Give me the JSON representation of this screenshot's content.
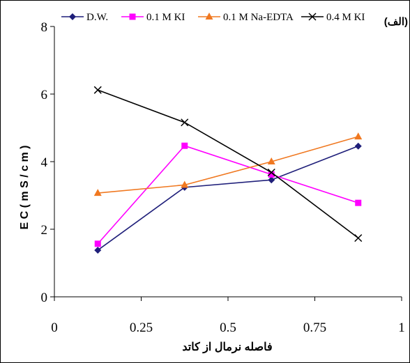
{
  "chart_data": {
    "type": "line",
    "panel_label": "(الف)",
    "xlabel": "فاصله نرمال از کاتد",
    "ylabel": "E C  ( m S / c m )",
    "xlim": [
      0,
      1
    ],
    "ylim": [
      0,
      8
    ],
    "x_ticks": [
      "0",
      "0.25",
      "0.5",
      "0.75",
      "1"
    ],
    "y_ticks": [
      "0",
      "2",
      "4",
      "6",
      "8"
    ],
    "x": [
      0.125,
      0.375,
      0.625,
      0.875
    ],
    "grid": false,
    "legend_position": "top",
    "series": [
      {
        "name": "D.W.",
        "color": "#1f1f7a",
        "marker": "diamond",
        "values": [
          1.38,
          3.24,
          3.46,
          4.46
        ]
      },
      {
        "name": "0.1 M KI",
        "color": "#ff00ff",
        "marker": "square",
        "values": [
          1.57,
          4.47,
          3.62,
          2.78
        ]
      },
      {
        "name": "0.1 M Na-EDTA",
        "color": "#f07820",
        "marker": "triangle",
        "values": [
          3.07,
          3.31,
          4.0,
          4.74
        ]
      },
      {
        "name": "0.4 M KI",
        "color": "#000000",
        "marker": "x",
        "values": [
          6.12,
          5.16,
          3.68,
          1.74
        ]
      }
    ]
  }
}
